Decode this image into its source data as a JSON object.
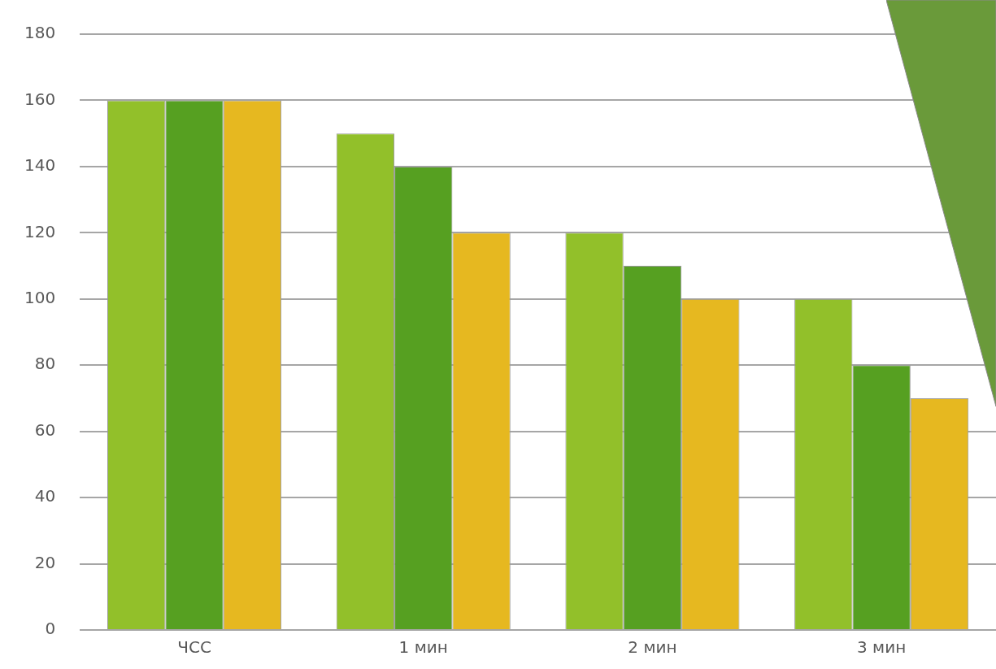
{
  "chart_data": {
    "type": "bar",
    "categories": [
      "ЧСС",
      "1 мин",
      "2 мин",
      "3 мин"
    ],
    "series": [
      {
        "color": "#92c02a",
        "values": [
          160,
          150,
          120,
          100
        ]
      },
      {
        "color": "#56a021",
        "values": [
          160,
          140,
          110,
          80
        ]
      },
      {
        "color": "#e6b820",
        "values": [
          160,
          120,
          100,
          70
        ]
      }
    ],
    "ylim": [
      0,
      180
    ],
    "yticks": [
      0,
      20,
      40,
      60,
      80,
      100,
      120,
      140,
      160,
      180
    ],
    "grid": "y",
    "legend": false
  }
}
